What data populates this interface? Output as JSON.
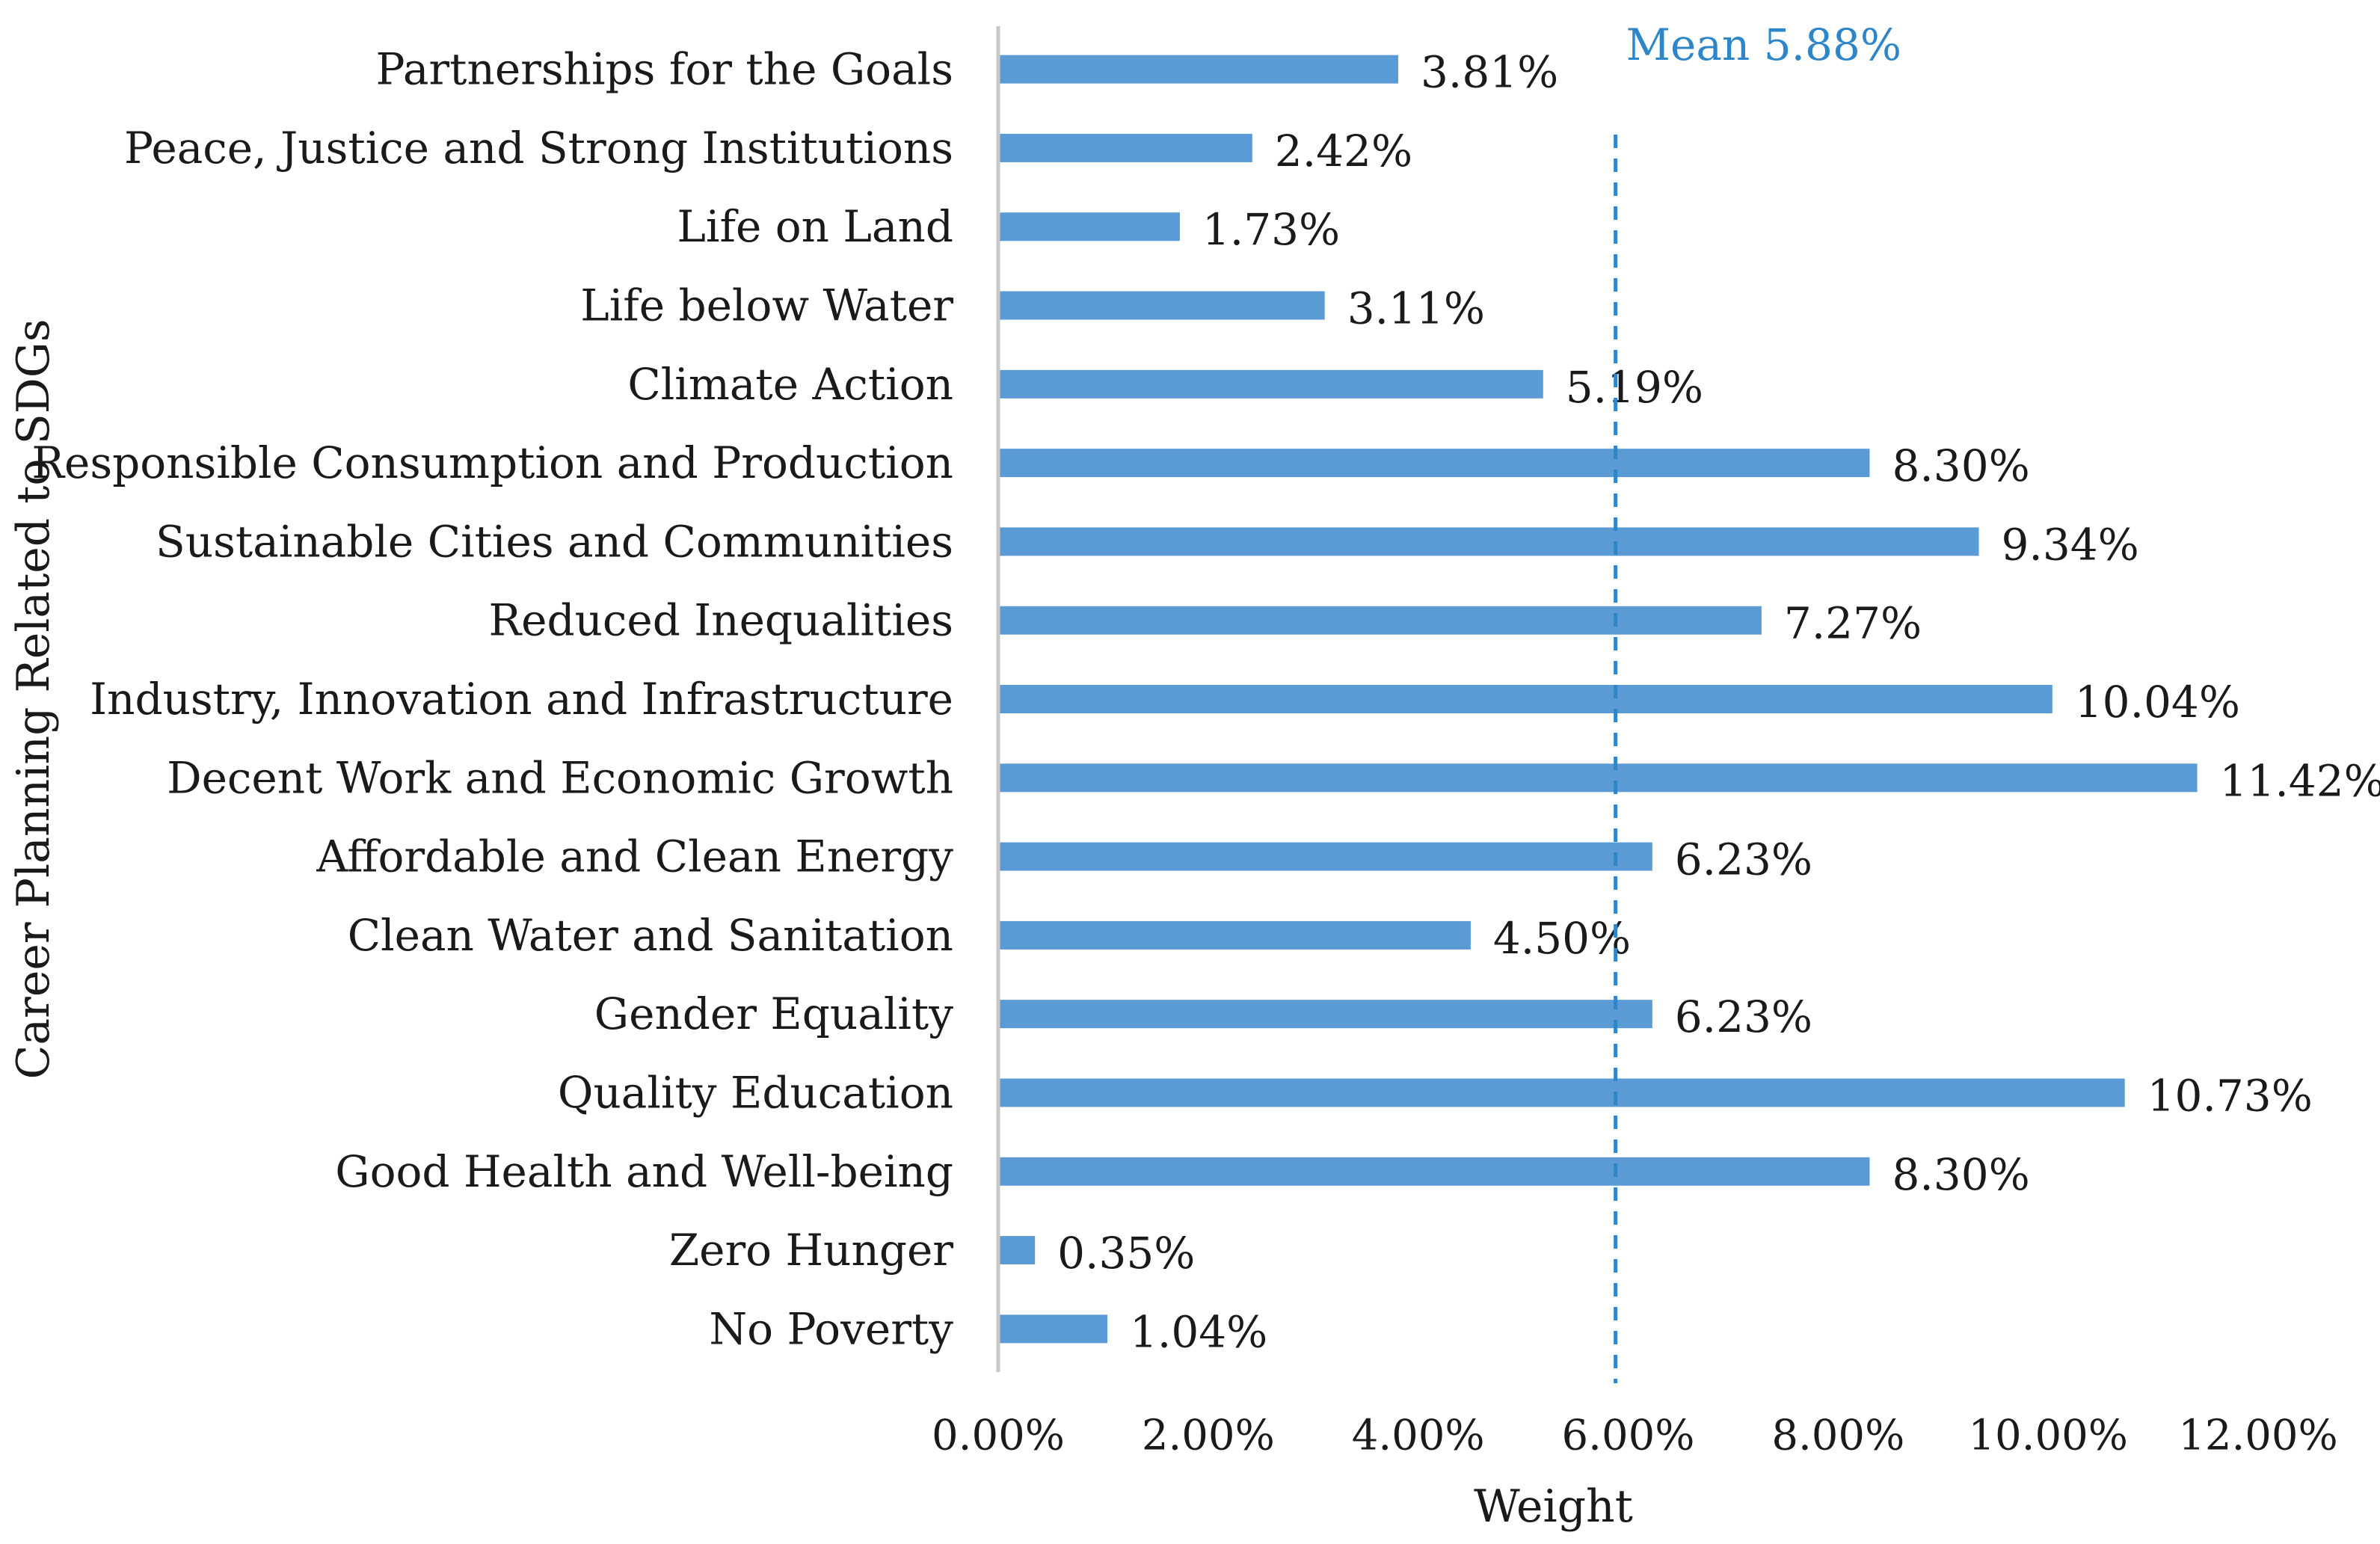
{
  "chart_data": {
    "type": "bar",
    "orientation": "horizontal",
    "title": "",
    "xlabel": "Weight",
    "ylabel": "Career Planning Related to SDGs",
    "xlim": [
      0,
      12
    ],
    "x_ticks": [
      0,
      2,
      4,
      6,
      8,
      10,
      12
    ],
    "x_tick_labels": [
      "0.00%",
      "2.00%",
      "4.00%",
      "6.00%",
      "8.00%",
      "10.00%",
      "12.00%"
    ],
    "grid": false,
    "legend": "none",
    "bar_color": "#5b9bd5",
    "categories": [
      "No Poverty",
      "Zero Hunger",
      "Good Health and Well-being",
      "Quality Education",
      "Gender Equality",
      "Clean Water and Sanitation",
      "Affordable and Clean Energy",
      "Decent Work and Economic Growth",
      "Industry, Innovation and Infrastructure",
      "Reduced Inequalities",
      "Sustainable Cities and Communities",
      "Responsible Consumption and Production",
      "Climate Action",
      "Life below Water",
      "Life on Land",
      "Peace, Justice and Strong Institutions",
      "Partnerships for the Goals"
    ],
    "values": [
      1.04,
      0.35,
      8.3,
      10.73,
      6.23,
      4.5,
      6.23,
      11.42,
      10.04,
      7.27,
      9.34,
      8.3,
      5.19,
      3.11,
      1.73,
      2.42,
      3.81
    ],
    "value_labels": [
      "1.04%",
      "0.35%",
      "8.30%",
      "10.73%",
      "6.23%",
      "4.50%",
      "6.23%",
      "11.42%",
      "10.04%",
      "7.27%",
      "9.34%",
      "8.30%",
      "5.19%",
      "3.11%",
      "1.73%",
      "2.42%",
      "3.81%"
    ],
    "mean": {
      "value": 5.88,
      "label": "Mean 5.88%",
      "color": "#2e86c8",
      "style": "dashed"
    }
  }
}
